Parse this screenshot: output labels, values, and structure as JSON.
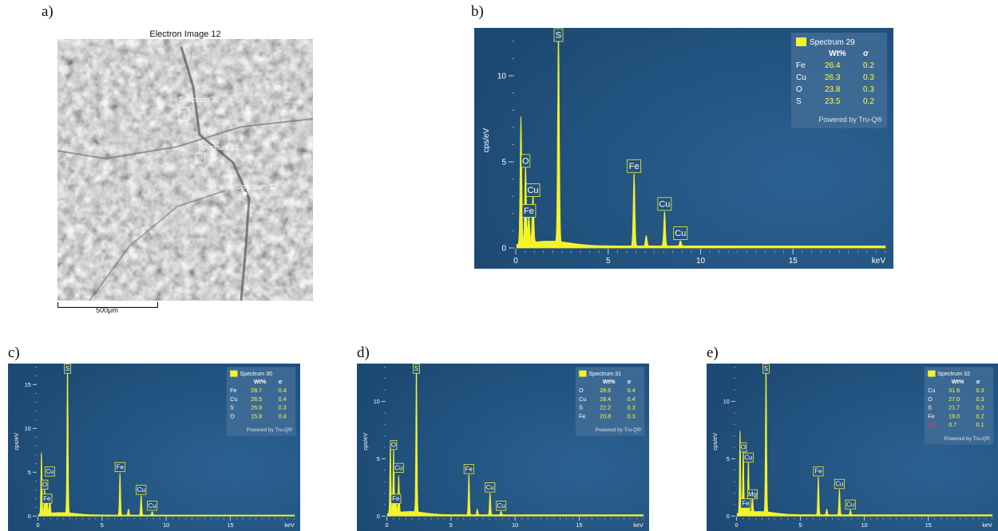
{
  "panel_labels": [
    "a)",
    "b)",
    "c)",
    "d)",
    "e)"
  ],
  "sem_image": {
    "title": "Electron Image 12",
    "scale_label": "500µm",
    "spectrum_markers": [
      "Spectrum 30",
      "Spectrum 31",
      "Spectrum 32"
    ]
  },
  "colors": {
    "background": "#1d4a74",
    "trace": "#f4f22a",
    "legend_bg": "#3f6b95",
    "legend_text": "#ffffff",
    "value_text": "#ffff40",
    "mg_text": "#ff3333"
  },
  "chart_data": [
    {
      "type": "line",
      "panel": "b)",
      "legend_title": "Spectrum 29",
      "xlabel": "keV",
      "ylabel": "cps/eV",
      "xlim": [
        0,
        20
      ],
      "ylim": [
        0,
        12.5
      ],
      "x_ticks": [
        "0",
        "5",
        "10",
        "15"
      ],
      "y_ticks": [
        "0",
        "5",
        "10"
      ],
      "x_tick_values": [
        0,
        5,
        10,
        15
      ],
      "y_tick_values": [
        0,
        5,
        10
      ],
      "headers": [
        "Wt%",
        "σ"
      ],
      "rows": [
        [
          "Fe",
          "26.4",
          "0.2"
        ],
        [
          "Cu",
          "26.3",
          "0.3"
        ],
        [
          "O",
          "23.8",
          "0.3"
        ],
        [
          "S",
          "23.5",
          "0.2"
        ]
      ],
      "footer": "Powered by Tru-Q®",
      "peaks": [
        {
          "x": 0.28,
          "y": 7.4
        },
        {
          "x": 0.53,
          "y": 4.5
        },
        {
          "x": 0.71,
          "y": 1.6
        },
        {
          "x": 0.93,
          "y": 2.8
        },
        {
          "x": 2.31,
          "y": 12.4
        },
        {
          "x": 6.4,
          "y": 4.2
        },
        {
          "x": 7.06,
          "y": 0.6
        },
        {
          "x": 8.05,
          "y": 2.0
        },
        {
          "x": 8.91,
          "y": 0.3
        }
      ],
      "labels": [
        {
          "text": "S",
          "x": 2.31,
          "y": 12.4
        },
        {
          "text": "O",
          "x": 0.53,
          "y": 4.5
        },
        {
          "text": "Cu",
          "x": 0.93,
          "y": 2.8
        },
        {
          "text": "Fe",
          "x": 0.71,
          "y": 1.6
        },
        {
          "text": "Fe",
          "x": 6.4,
          "y": 4.2
        },
        {
          "text": "Cu",
          "x": 8.05,
          "y": 2.0
        },
        {
          "text": "Cu",
          "x": 8.91,
          "y": 0.3
        }
      ]
    },
    {
      "type": "line",
      "panel": "c)",
      "legend_title": "Spectrum 30",
      "xlabel": "keV",
      "ylabel": "cps/eV",
      "xlim": [
        0,
        20
      ],
      "ylim": [
        0,
        17
      ],
      "x_ticks": [
        "0",
        "5",
        "10",
        "15"
      ],
      "y_ticks": [
        "0",
        "5",
        "10",
        "15"
      ],
      "x_tick_values": [
        0,
        5,
        10,
        15
      ],
      "y_tick_values": [
        0,
        5,
        10,
        15
      ],
      "headers": [
        "Wt%",
        "σ"
      ],
      "rows": [
        [
          "Fe",
          "28.7",
          "0.4"
        ],
        [
          "Cu",
          "28.5",
          "0.4"
        ],
        [
          "S",
          "26.9",
          "0.3"
        ],
        [
          "O",
          "15.9",
          "0.4"
        ]
      ],
      "footer": "Powered by Tru-Q®",
      "peaks": [
        {
          "x": 0.28,
          "y": 7.0
        },
        {
          "x": 0.53,
          "y": 2.8
        },
        {
          "x": 0.71,
          "y": 1.9
        },
        {
          "x": 0.93,
          "y": 2.0
        },
        {
          "x": 2.31,
          "y": 16.8
        },
        {
          "x": 6.4,
          "y": 4.8
        },
        {
          "x": 7.06,
          "y": 0.7
        },
        {
          "x": 8.05,
          "y": 2.2
        },
        {
          "x": 8.91,
          "y": 0.4
        }
      ],
      "labels": [
        {
          "text": "S",
          "x": 2.31,
          "y": 16.8
        },
        {
          "text": "Cu",
          "x": 0.93,
          "y": 4.3
        },
        {
          "text": "O",
          "x": 0.53,
          "y": 2.8
        },
        {
          "text": "Fe",
          "x": 0.71,
          "y": 1.2
        },
        {
          "text": "Fe",
          "x": 6.4,
          "y": 4.8
        },
        {
          "text": "Cu",
          "x": 8.05,
          "y": 2.2
        },
        {
          "text": "Cu",
          "x": 8.91,
          "y": 0.4
        }
      ]
    },
    {
      "type": "line",
      "panel": "d)",
      "legend_title": "Spectrum 31",
      "xlabel": "keV",
      "ylabel": "cps/eV",
      "xlim": [
        0,
        20
      ],
      "ylim": [
        0,
        13
      ],
      "x_ticks": [
        "0",
        "5",
        "10",
        "15"
      ],
      "y_ticks": [
        "0",
        "5",
        "10"
      ],
      "x_tick_values": [
        0,
        5,
        10,
        15
      ],
      "y_tick_values": [
        0,
        5,
        10
      ],
      "headers": [
        "Wt%",
        "σ"
      ],
      "rows": [
        [
          "O",
          "28.6",
          "0.4"
        ],
        [
          "Cu",
          "28.4",
          "0.4"
        ],
        [
          "S",
          "22.2",
          "0.3"
        ],
        [
          "Fe",
          "20.8",
          "0.3"
        ]
      ],
      "footer": "Powered by Tru-Q®",
      "peaks": [
        {
          "x": 0.28,
          "y": 6.0
        },
        {
          "x": 0.53,
          "y": 5.6
        },
        {
          "x": 0.71,
          "y": 1.0
        },
        {
          "x": 0.93,
          "y": 3.2
        },
        {
          "x": 2.31,
          "y": 12.9
        },
        {
          "x": 6.4,
          "y": 3.5
        },
        {
          "x": 7.06,
          "y": 0.5
        },
        {
          "x": 8.05,
          "y": 1.9
        },
        {
          "x": 8.91,
          "y": 0.3
        }
      ],
      "labels": [
        {
          "text": "S",
          "x": 2.31,
          "y": 12.9
        },
        {
          "text": "O",
          "x": 0.53,
          "y": 5.6
        },
        {
          "text": "Cu",
          "x": 0.93,
          "y": 3.6
        },
        {
          "text": "Fe",
          "x": 0.71,
          "y": 0.9
        },
        {
          "text": "Fe",
          "x": 6.4,
          "y": 3.5
        },
        {
          "text": "Cu",
          "x": 8.05,
          "y": 1.9
        },
        {
          "text": "Cu",
          "x": 8.91,
          "y": 0.3
        }
      ]
    },
    {
      "type": "line",
      "panel": "e)",
      "legend_title": "Spectrum 32",
      "xlabel": "keV",
      "ylabel": "cps/eV",
      "xlim": [
        0,
        20
      ],
      "ylim": [
        0,
        13
      ],
      "x_ticks": [
        "0",
        "5",
        "10",
        "15"
      ],
      "y_ticks": [
        "0",
        "5",
        "10"
      ],
      "x_tick_values": [
        0,
        5,
        10,
        15
      ],
      "y_tick_values": [
        0,
        5,
        10
      ],
      "headers": [
        "Wt%",
        "σ"
      ],
      "rows": [
        [
          "Cu",
          "31.6",
          "0.3"
        ],
        [
          "O",
          "27.0",
          "0.3"
        ],
        [
          "S",
          "21.7",
          "0.2"
        ],
        [
          "Fe",
          "19.0",
          "0.2"
        ],
        [
          "Mg",
          "0.7",
          "0.1"
        ]
      ],
      "footer": "Powered by Tru-Q®",
      "peaks": [
        {
          "x": 0.28,
          "y": 7.2
        },
        {
          "x": 0.53,
          "y": 5.4
        },
        {
          "x": 0.71,
          "y": 0.9
        },
        {
          "x": 0.93,
          "y": 4.5
        },
        {
          "x": 1.25,
          "y": 1.3
        },
        {
          "x": 2.31,
          "y": 12.9
        },
        {
          "x": 6.4,
          "y": 3.3
        },
        {
          "x": 7.06,
          "y": 0.5
        },
        {
          "x": 8.05,
          "y": 2.2
        },
        {
          "x": 8.91,
          "y": 0.4
        }
      ],
      "labels": [
        {
          "text": "S",
          "x": 2.31,
          "y": 12.9
        },
        {
          "text": "O",
          "x": 0.53,
          "y": 5.4
        },
        {
          "text": "Cu",
          "x": 0.93,
          "y": 4.5
        },
        {
          "text": "Mg",
          "x": 1.25,
          "y": 1.3
        },
        {
          "text": "Fe",
          "x": 0.71,
          "y": 0.5
        },
        {
          "text": "Fe",
          "x": 6.4,
          "y": 3.3
        },
        {
          "text": "Cu",
          "x": 8.05,
          "y": 2.2
        },
        {
          "text": "Cu",
          "x": 8.91,
          "y": 0.4
        }
      ]
    }
  ]
}
